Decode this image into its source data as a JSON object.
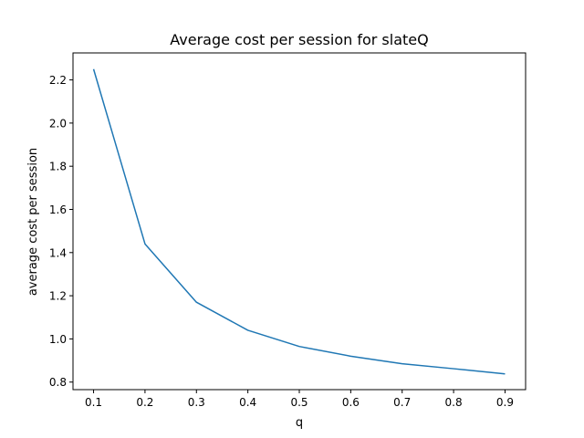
{
  "chart_data": {
    "type": "line",
    "title": "Average cost per session for slateQ",
    "xlabel": "q",
    "ylabel": "average cost per session",
    "x": [
      0.1,
      0.2,
      0.3,
      0.4,
      0.5,
      0.6,
      0.7,
      0.8,
      0.9
    ],
    "series": [
      {
        "values": [
          2.25,
          1.44,
          1.17,
          1.04,
          0.965,
          0.92,
          0.885,
          0.862,
          0.838
        ],
        "color": "#1f77b4"
      }
    ],
    "xlim": [
      0.06,
      0.94
    ],
    "ylim": [
      0.765,
      2.325
    ],
    "xticks": [
      "0.1",
      "0.2",
      "0.3",
      "0.4",
      "0.5",
      "0.6",
      "0.7",
      "0.8",
      "0.9"
    ],
    "yticks": [
      "0.8",
      "1.0",
      "1.2",
      "1.4",
      "1.6",
      "1.8",
      "2.0",
      "2.2"
    ],
    "grid": false,
    "legend": "none"
  }
}
